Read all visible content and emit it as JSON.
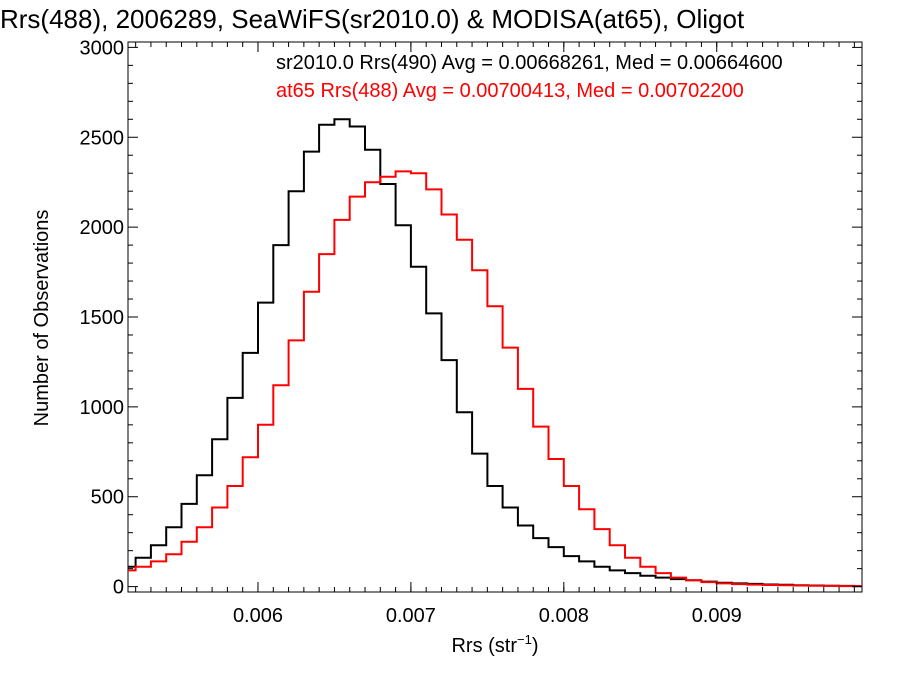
{
  "chart_data": {
    "type": "histogram",
    "title": "Rrs(488), 2006289, SeaWiFS(sr2010.0) & MODISA(at65), Oligot",
    "xlabel": "Rrs (str",
    "xlabel_sup": "−1",
    "xlabel_close": ")",
    "ylabel": "Number of Observations",
    "xlim": [
      0.00515,
      0.00995
    ],
    "ylim": [
      -30,
      3030
    ],
    "x_ticks": [
      0.006,
      0.007,
      0.008,
      0.009
    ],
    "x_tick_labels": [
      "0.006",
      "0.007",
      "0.008",
      "0.009"
    ],
    "y_ticks": [
      0,
      500,
      1000,
      1500,
      2000,
      2500,
      3000
    ],
    "y_tick_labels": [
      "0",
      "500",
      "1000",
      "1500",
      "2000",
      "2500",
      "3000"
    ],
    "grid": false,
    "legend_placement": "top-right",
    "series": [
      {
        "name": "sr2010.0 Rrs(490) Avg = 0.00668261, Med = 0.00664600",
        "color": "#000000",
        "x": [
          0.0052,
          0.0053,
          0.0054,
          0.0055,
          0.0056,
          0.0057,
          0.0058,
          0.0059,
          0.006,
          0.0061,
          0.0062,
          0.0063,
          0.0064,
          0.0065,
          0.0066,
          0.0067,
          0.0068,
          0.0069,
          0.007,
          0.0071,
          0.0072,
          0.0073,
          0.0074,
          0.0075,
          0.0076,
          0.0077,
          0.0078,
          0.0079,
          0.008,
          0.0081,
          0.0082,
          0.0083,
          0.0084,
          0.0085,
          0.0086,
          0.0087,
          0.0088,
          0.0089,
          0.009,
          0.0091,
          0.0092,
          0.0093,
          0.0094,
          0.0095,
          0.0096,
          0.0097,
          0.0098,
          0.0099,
          0.00995
        ],
        "y": [
          110,
          160,
          230,
          330,
          460,
          620,
          820,
          1050,
          1300,
          1580,
          1900,
          2200,
          2420,
          2570,
          2600,
          2560,
          2430,
          2240,
          2010,
          1780,
          1520,
          1260,
          970,
          740,
          560,
          440,
          340,
          270,
          220,
          170,
          140,
          110,
          90,
          75,
          60,
          50,
          42,
          35,
          28,
          22,
          18,
          15,
          12,
          10,
          8,
          6,
          5,
          4,
          3
        ]
      },
      {
        "name": "at65 Rrs(488) Avg = 0.00700413, Med = 0.00702200",
        "color": "#ff0000",
        "x": [
          0.0052,
          0.0053,
          0.0054,
          0.0055,
          0.0056,
          0.0057,
          0.0058,
          0.0059,
          0.006,
          0.0061,
          0.0062,
          0.0063,
          0.0064,
          0.0065,
          0.0066,
          0.0067,
          0.0068,
          0.0069,
          0.007,
          0.0071,
          0.0072,
          0.0073,
          0.0074,
          0.0075,
          0.0076,
          0.0077,
          0.0078,
          0.0079,
          0.008,
          0.0081,
          0.0082,
          0.0083,
          0.0084,
          0.0085,
          0.0086,
          0.0087,
          0.0088,
          0.0089,
          0.009,
          0.0091,
          0.0092,
          0.0093,
          0.0094,
          0.0095,
          0.0096,
          0.0097,
          0.0098,
          0.0099,
          0.00995
        ],
        "y": [
          90,
          110,
          140,
          180,
          250,
          330,
          440,
          560,
          720,
          900,
          1120,
          1370,
          1640,
          1850,
          2040,
          2170,
          2250,
          2280,
          2310,
          2300,
          2210,
          2070,
          1930,
          1760,
          1560,
          1330,
          1100,
          890,
          710,
          560,
          430,
          320,
          230,
          160,
          110,
          75,
          50,
          35,
          25,
          18,
          14,
          11,
          9,
          7,
          6,
          5,
          4,
          3,
          3
        ]
      }
    ]
  }
}
